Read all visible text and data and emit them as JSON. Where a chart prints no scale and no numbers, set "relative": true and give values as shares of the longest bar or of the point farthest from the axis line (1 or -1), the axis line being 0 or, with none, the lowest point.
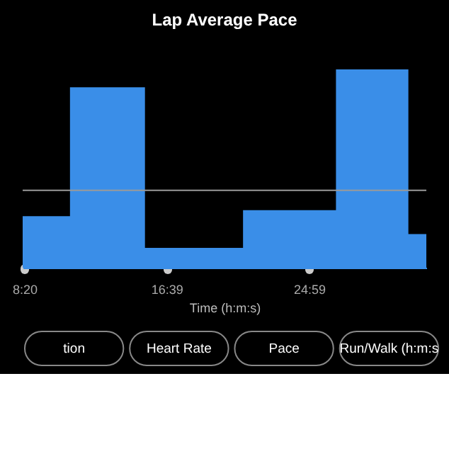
{
  "chart_data": {
    "type": "area",
    "title": "Lap Average Pace",
    "xlabel": "Time (h:m:s)",
    "relative": true,
    "x": [
      494,
      660,
      923,
      1267,
      1593,
      1847,
      1910
    ],
    "values": [
      0.26,
      0.91,
      0.1,
      0.29,
      1.0,
      0.17,
      0.17
    ],
    "color": "#3a8ee8",
    "xlim": [
      494,
      1910
    ],
    "xticks": [
      {
        "value": 500,
        "label": "8:20"
      },
      {
        "value": 999,
        "label": "16:39"
      },
      {
        "value": 1499,
        "label": "24:59"
      }
    ],
    "ref_lines": [
      {
        "axis": "y",
        "value": 0.39,
        "color": "#9a9a9a"
      }
    ],
    "grid": false,
    "annotations": [
      "tion",
      "Heart Rate",
      "Pace",
      "Run/Walk (h:m:s"
    ]
  }
}
